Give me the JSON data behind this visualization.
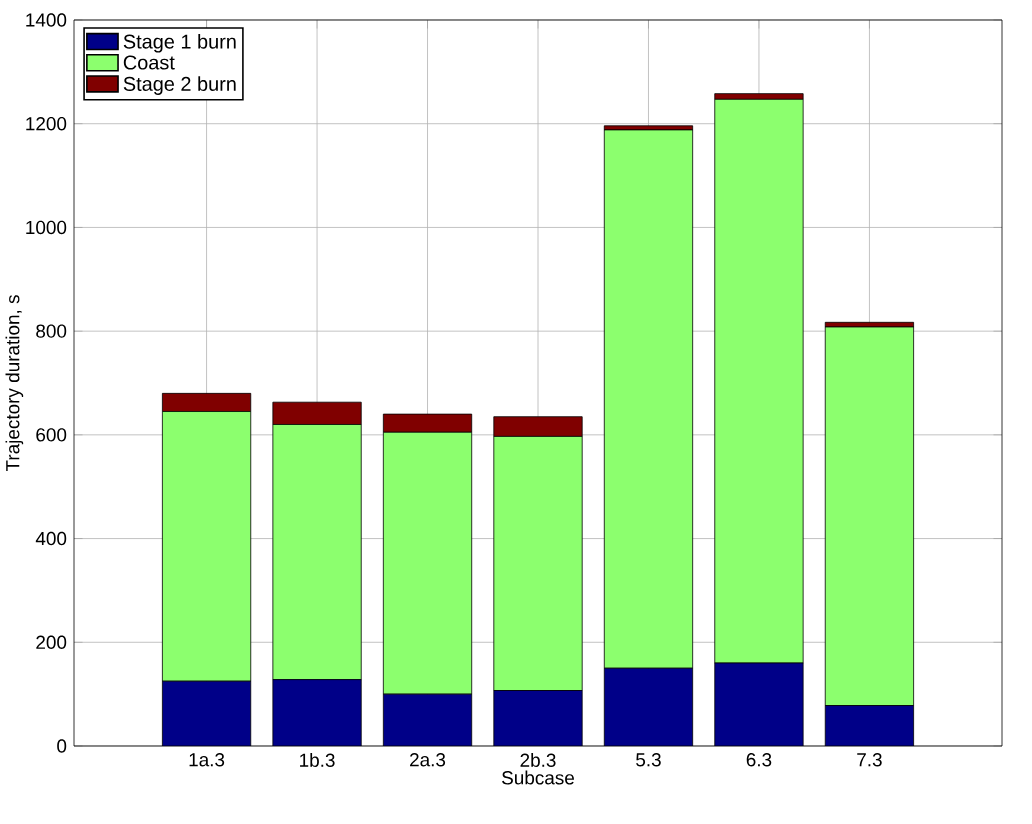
{
  "chart_data": {
    "type": "bar",
    "stacked": true,
    "xlabel": "Subcase",
    "ylabel": "Trajectory duration, s",
    "categories": [
      "1a.3",
      "1b.3",
      "2a.3",
      "2b.3",
      "5.3",
      "6.3",
      "7.3"
    ],
    "series": [
      {
        "name": "Stage 1 burn",
        "color": "#000088",
        "values": [
          125,
          128,
          100,
          107,
          150,
          160,
          78
        ]
      },
      {
        "name": "Coast",
        "color": "#8cff6e",
        "values": [
          520,
          492,
          505,
          490,
          1038,
          1087,
          730
        ]
      },
      {
        "name": "Stage 2 burn",
        "color": "#800000",
        "values": [
          35,
          43,
          35,
          38,
          8,
          11,
          9
        ]
      }
    ],
    "ylim": [
      0,
      1400
    ],
    "yticks": [
      0,
      200,
      400,
      600,
      800,
      1000,
      1200,
      1400
    ],
    "grid": true,
    "legend": "top left"
  }
}
